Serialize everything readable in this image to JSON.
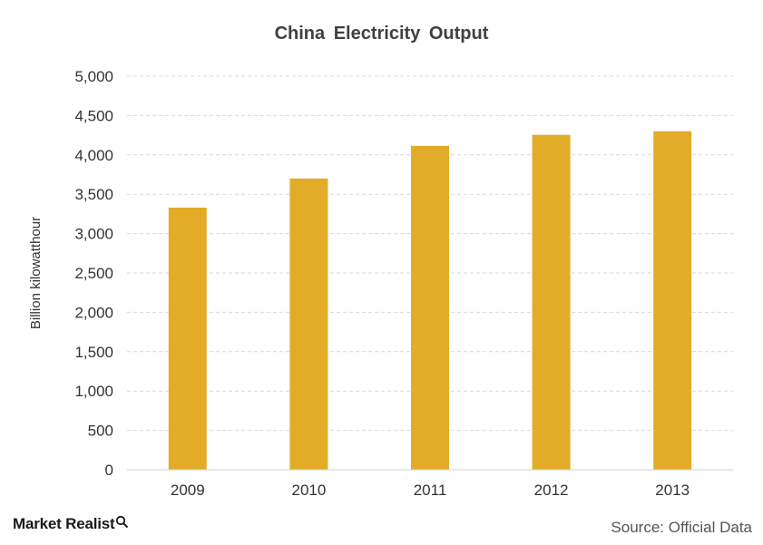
{
  "chart_data": {
    "type": "bar",
    "title": "China Electricity Output",
    "xlabel": "",
    "ylabel": "Billion kilowatthour",
    "categories": [
      "2009",
      "2010",
      "2011",
      "2012",
      "2013"
    ],
    "values": [
      3330,
      3700,
      4115,
      4255,
      4300
    ],
    "ylim": [
      0,
      5000
    ],
    "yticks": [
      0,
      500,
      1000,
      1500,
      2000,
      2500,
      3000,
      3500,
      4000,
      4500,
      5000
    ],
    "ytick_labels": [
      "0",
      "500",
      "1,000",
      "1,500",
      "2,000",
      "2,500",
      "3,000",
      "3,500",
      "4,000",
      "4,500",
      "5,000"
    ],
    "grid": "dashed horizontal",
    "bar_color": "#E2AC28"
  },
  "footer": {
    "brand": "Market Realist",
    "brand_icon": "magnifier-icon",
    "source": "Source: Official Data"
  }
}
